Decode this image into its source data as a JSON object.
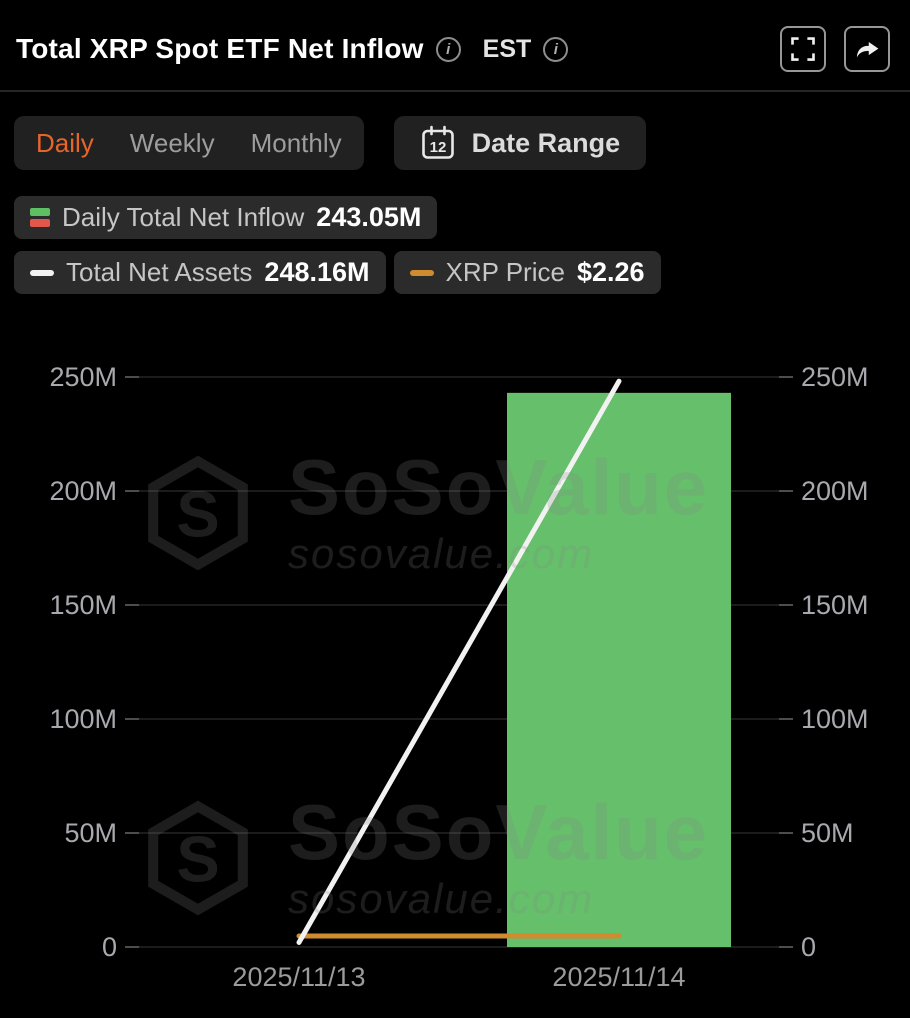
{
  "header": {
    "title": "Total XRP Spot ETF Net Inflow",
    "timezone_label": "EST"
  },
  "icons": {
    "info_glyph": "i",
    "calendar_day": "12"
  },
  "controls": {
    "tabs": [
      "Daily",
      "Weekly",
      "Monthly"
    ],
    "active_tab": "Daily",
    "date_range_label": "Date Range"
  },
  "legend": {
    "items": [
      {
        "label": "Daily Total Net Inflow",
        "value": "243.05M"
      },
      {
        "label": "Total Net Assets",
        "value": "248.16M"
      },
      {
        "label": "XRP Price",
        "value": "$2.26"
      }
    ]
  },
  "watermark": {
    "brand": "SoSoValue",
    "domain": "sosovalue.com"
  },
  "colors": {
    "accent_orange": "#E8652A",
    "bar_green": "#66BF6B",
    "net_assets_line": "#F2F2F2",
    "price_line": "#CE8B30",
    "badge_bg": "#2b2b2b",
    "inflow_icon_green": "#5FBF63",
    "inflow_icon_red": "#E2574C"
  },
  "chart_data": {
    "type": "bar",
    "title": "Total XRP Spot ETF Net Inflow",
    "categories": [
      "2025/11/13",
      "2025/11/14"
    ],
    "series": [
      {
        "name": "Daily Total Net Inflow",
        "type": "bar",
        "color": "#66BF6B",
        "values": [
          0,
          243.05
        ]
      },
      {
        "name": "Total Net Assets",
        "type": "line",
        "color": "#F2F2F2",
        "values": [
          2,
          248.16
        ]
      },
      {
        "name": "XRP Price",
        "type": "line",
        "axis": "price",
        "color": "#CE8B30",
        "values": [
          2.26,
          2.26
        ]
      }
    ],
    "y_ticks": [
      "250M",
      "200M",
      "150M",
      "100M",
      "50M",
      "0"
    ],
    "y_tick_values": [
      250,
      200,
      150,
      100,
      50,
      0
    ],
    "ylim": [
      0,
      250
    ],
    "xlabel": "",
    "ylabel": "",
    "grid": true,
    "legend_position": "top"
  }
}
